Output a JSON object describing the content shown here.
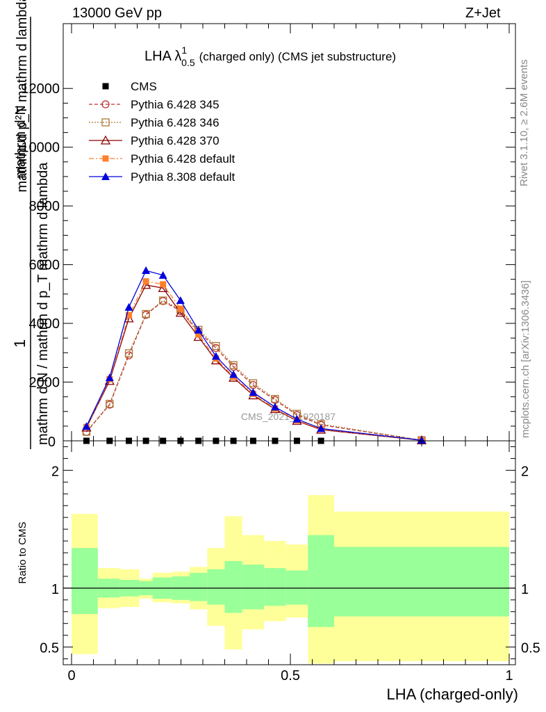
{
  "header": {
    "left": "13000 GeV pp",
    "right": "Z+Jet"
  },
  "side_labels": {
    "rivet": "Rivet 3.1.10, ≥ 2.6M events",
    "mcplots": "mcplots.cern.ch [arXiv:1306.3436]"
  },
  "colors": {
    "cms": "#000000",
    "p345": "#bb3333",
    "p346": "#aa7733",
    "p370": "#8b0000",
    "p6def": "#ff7f2a",
    "p8def": "#0000dd",
    "band_inner": "#99ff99",
    "band_outer": "#ffff99"
  },
  "chart_data": [
    {
      "type": "line",
      "title": "LHA λ",
      "title_sup": "1",
      "title_sub": "0.5",
      "title_rest": "(charged only) (CMS jet substructure)",
      "watermark": "CMS_2021_I1920187",
      "ylabel_top": "1",
      "ylabel_den": "mathrm d N / mathrm d p",
      "ylabel_num": "mathrm d",
      "ylabel_full": "mathrm d N / mathrm d p_T mathrm d lambda",
      "ylabel_n1": "mathrm d²N",
      "ylabel_d2": "mathrm d p_T mathrm d lambda",
      "ylim": [
        0,
        13000
      ],
      "y_ticks": [
        2000,
        4000,
        6000,
        8000,
        10000,
        12000
      ],
      "y_tick_labels": [
        "2000",
        "4000",
        "6000",
        "8000",
        "10000",
        "12000"
      ],
      "y_zero_label": "0",
      "legend": [
        "CMS",
        "Pythia 6.428 345",
        "Pythia 6.428 346",
        "Pythia 6.428 370",
        "Pythia 6.428 default",
        "Pythia 8.308 default"
      ],
      "x": [
        0.034,
        0.087,
        0.131,
        0.17,
        0.209,
        0.249,
        0.29,
        0.33,
        0.37,
        0.415,
        0.465,
        0.515,
        0.57,
        0.8
      ],
      "series": [
        {
          "name": "CMS",
          "values": [
            0,
            0,
            0,
            0,
            0,
            0,
            0,
            0,
            0,
            0,
            0,
            0,
            0,
            0
          ]
        },
        {
          "name": "Pythia 6.428 345",
          "values": [
            300,
            1230,
            2910,
            4290,
            4760,
            4420,
            3730,
            3160,
            2520,
            1900,
            1390,
            880,
            540,
            20
          ]
        },
        {
          "name": "Pythia 6.428 346",
          "values": [
            310,
            1260,
            2980,
            4320,
            4780,
            4470,
            3780,
            3230,
            2580,
            1960,
            1430,
            920,
            570,
            22
          ]
        },
        {
          "name": "Pythia 6.428 370",
          "values": [
            450,
            2040,
            4170,
            5310,
            5200,
            4360,
            3540,
            2740,
            2150,
            1550,
            1080,
            680,
            380,
            18
          ]
        },
        {
          "name": "Pythia 6.428 default",
          "values": [
            470,
            2100,
            4280,
            5430,
            5330,
            4500,
            3620,
            2800,
            2180,
            1600,
            1100,
            700,
            400,
            18
          ]
        },
        {
          "name": "Pythia 8.308 default",
          "values": [
            490,
            2150,
            4550,
            5800,
            5640,
            4780,
            3770,
            2880,
            2260,
            1650,
            1150,
            740,
            420,
            22
          ]
        }
      ]
    },
    {
      "type": "area",
      "ylabel": "Ratio to CMS",
      "xlabel": "LHA (charged-only)",
      "xlim": [
        0,
        1
      ],
      "ylim": [
        0.35,
        2.25
      ],
      "x_ticks": [
        0,
        0.5,
        1
      ],
      "x_tick_labels": [
        "0",
        "0.5",
        "1"
      ],
      "y_ticks": [
        0.5,
        1,
        2
      ],
      "y_tick_labels": [
        "0.5",
        "1",
        "2"
      ],
      "bin_edges": [
        0,
        0.06,
        0.11,
        0.155,
        0.185,
        0.23,
        0.27,
        0.31,
        0.35,
        0.39,
        0.44,
        0.49,
        0.54,
        0.6,
        1.0
      ],
      "band_inner_lo": [
        0.78,
        0.92,
        0.93,
        0.94,
        0.91,
        0.9,
        0.89,
        0.86,
        0.79,
        0.82,
        0.85,
        0.86,
        0.67,
        0.76
      ],
      "band_inner_hi": [
        1.34,
        1.08,
        1.07,
        1.06,
        1.09,
        1.1,
        1.13,
        1.16,
        1.23,
        1.2,
        1.17,
        1.15,
        1.45,
        1.35
      ],
      "band_outer_lo": [
        0.44,
        0.83,
        0.84,
        0.91,
        0.88,
        0.87,
        0.82,
        0.68,
        0.48,
        0.65,
        0.72,
        0.75,
        0.36,
        0.38
      ],
      "band_outer_hi": [
        1.63,
        1.17,
        1.16,
        1.08,
        1.13,
        1.14,
        1.18,
        1.34,
        1.61,
        1.45,
        1.4,
        1.37,
        1.79,
        1.65
      ]
    }
  ]
}
